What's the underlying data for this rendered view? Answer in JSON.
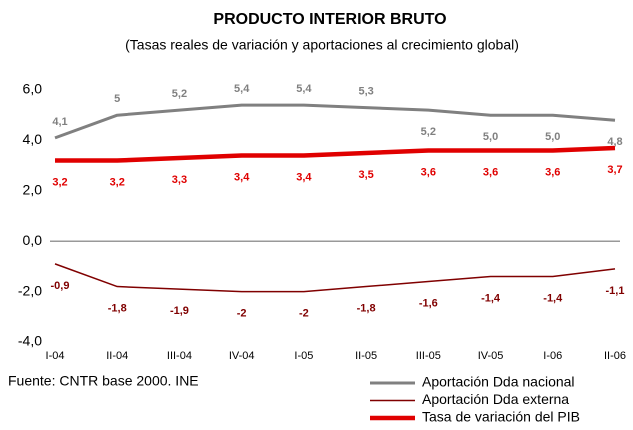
{
  "chart_data": {
    "type": "line",
    "title": "PRODUCTO INTERIOR BRUTO",
    "subtitle": "(Tasas reales de variación y aportaciones al crecimiento global)",
    "source": "Fuente: CNTR base 2000. INE",
    "categories": [
      "I-04",
      "II-04",
      "III-04",
      "IV-04",
      "I-05",
      "II-05",
      "III-05",
      "IV-05",
      "I-06",
      "II-06"
    ],
    "series": [
      {
        "name": "Aportación Dda nacional",
        "color": "#808080",
        "width": 3,
        "values": [
          4.1,
          5,
          5.2,
          5.4,
          5.4,
          5.3,
          5.2,
          5.0,
          5.0,
          4.8
        ],
        "value_labels": [
          "4,1",
          "5",
          "5,2",
          "5,4",
          "5,4",
          "5,3",
          "5,2",
          "5,0",
          "5,0",
          "4,8"
        ]
      },
      {
        "name": "Aportación Dda externa",
        "color": "#800000",
        "width": 1.5,
        "values": [
          -0.9,
          -1.8,
          -1.9,
          -2,
          -2,
          -1.8,
          -1.6,
          -1.4,
          -1.4,
          -1.1
        ],
        "value_labels": [
          "-0,9",
          "-1,8",
          "-1,9",
          "-2",
          "-2",
          "-1,8",
          "-1,6",
          "-1,4",
          "-1,4",
          "-1,1"
        ]
      },
      {
        "name": "Tasa de variación del PIB",
        "color": "#e00000",
        "width": 4.5,
        "values": [
          3.2,
          3.2,
          3.3,
          3.4,
          3.4,
          3.5,
          3.6,
          3.6,
          3.6,
          3.7
        ],
        "value_labels": [
          "3,2",
          "3,2",
          "3,3",
          "3,4",
          "3,4",
          "3,5",
          "3,6",
          "3,6",
          "3,6",
          "3,7"
        ]
      }
    ],
    "ylim": [
      -4,
      6
    ],
    "yticks": [
      {
        "value": -4,
        "label": "-4,0"
      },
      {
        "value": -2,
        "label": "-2,0"
      },
      {
        "value": 0,
        "label": "0,0"
      },
      {
        "value": 2,
        "label": "2,0"
      },
      {
        "value": 4,
        "label": "4,0"
      },
      {
        "value": 6,
        "label": "6,0"
      }
    ],
    "legend": "bottom-right"
  }
}
